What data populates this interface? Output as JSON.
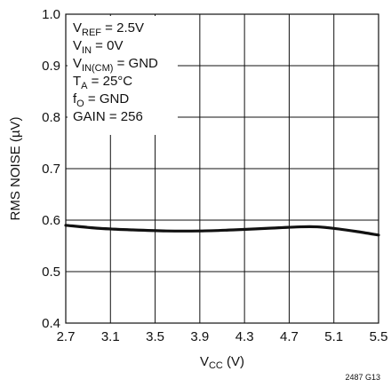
{
  "chart_data": {
    "type": "line",
    "xlabel": {
      "main": "V",
      "sub": "CC",
      "unit": " (V)"
    },
    "ylabel": "RMS NOISE (µV)",
    "xlim": [
      2.7,
      5.5
    ],
    "ylim": [
      0.4,
      1.0
    ],
    "x_ticks": [
      "2.7",
      "3.1",
      "3.5",
      "3.9",
      "4.3",
      "4.7",
      "5.1",
      "5.5"
    ],
    "y_ticks": [
      "0.4",
      "0.5",
      "0.6",
      "0.7",
      "0.8",
      "0.9",
      "1.0"
    ],
    "grid": true,
    "series": [
      {
        "x": [
          2.7,
          3.0,
          3.3,
          3.6,
          3.9,
          4.2,
          4.5,
          4.8,
          4.95,
          5.1,
          5.3,
          5.5
        ],
        "y": [
          0.59,
          0.584,
          0.581,
          0.579,
          0.579,
          0.581,
          0.584,
          0.587,
          0.587,
          0.584,
          0.578,
          0.571
        ]
      }
    ],
    "annotations": [
      {
        "main": "V",
        "sub": "REF",
        "tail": " = 2.5V"
      },
      {
        "main": "V",
        "sub": "IN",
        "tail": " = 0V"
      },
      {
        "main": "V",
        "sub": "IN(CM)",
        "tail": " = GND"
      },
      {
        "main": "T",
        "sub": "A",
        "tail": " = 25°C"
      },
      {
        "main": "f",
        "sub": "O",
        "tail": " = GND"
      },
      {
        "main": "GAIN = 256",
        "sub": "",
        "tail": ""
      }
    ],
    "figure_id": "2487 G13"
  }
}
